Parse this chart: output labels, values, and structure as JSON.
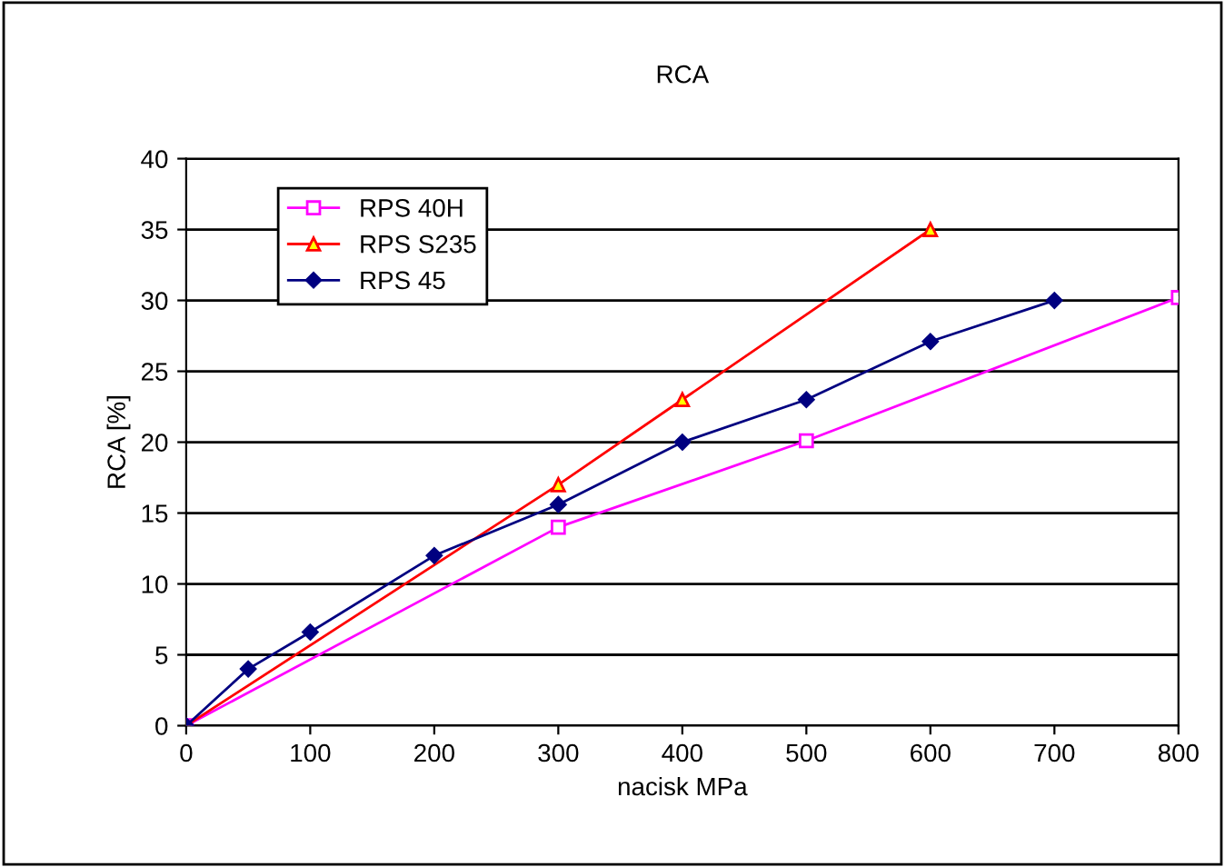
{
  "chart_data": {
    "type": "line",
    "title": "RCA",
    "xlabel": "nacisk MPa",
    "ylabel": "RCA [%]",
    "xlim": [
      0,
      800
    ],
    "xticks": [
      0,
      100,
      200,
      300,
      400,
      500,
      600,
      700,
      800
    ],
    "ylim": [
      0,
      40
    ],
    "yticks": [
      0,
      5,
      10,
      15,
      20,
      25,
      30,
      35,
      40
    ],
    "grid": "y",
    "legend": "top left",
    "series": [
      {
        "name": "RPS 40H",
        "color": "#ff00ff",
        "marker": "square",
        "x": [
          0,
          300,
          500,
          800
        ],
        "values": [
          0,
          14,
          20.1,
          30.2
        ]
      },
      {
        "name": "RPS S235",
        "color": "#ff0000",
        "marker": "triangle",
        "x": [
          0,
          300,
          400,
          600
        ],
        "values": [
          0,
          17,
          23,
          35
        ]
      },
      {
        "name": "RPS 45",
        "color": "#000080",
        "marker": "diamond",
        "x": [
          0,
          50,
          100,
          200,
          300,
          400,
          500,
          600,
          700
        ],
        "values": [
          0,
          4,
          6.6,
          12,
          15.6,
          20,
          23,
          27.1,
          30
        ]
      }
    ]
  }
}
